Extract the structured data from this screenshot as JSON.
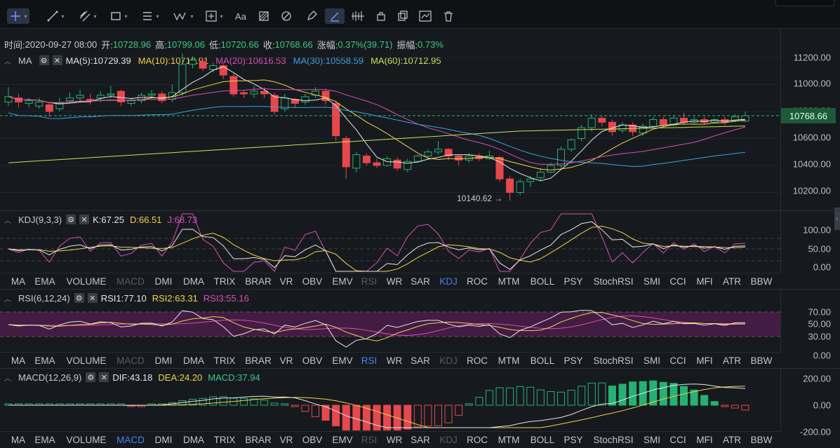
{
  "toolbar": {
    "tools": [
      "crosshair-icon",
      "trend-line-icon",
      "parallel-line-icon",
      "rectangle-icon",
      "fib-lines-icon",
      "wave-icon",
      "measure-icon",
      "text-icon",
      "pattern-icon",
      "shapes-icon",
      "pencil-icon",
      "price-range-icon",
      "lock-icon",
      "duplicate-icon",
      "settings-icon",
      "trash-icon"
    ],
    "text_tool_label": "Aa"
  },
  "info": {
    "time_label": "时间:",
    "time": "2020-09-27 08:00",
    "open_label": "开:",
    "open": "10728.96",
    "high_label": "高:",
    "high": "10799.06",
    "low_label": "低:",
    "low": "10720.66",
    "close_label": "收:",
    "close": "10768.66",
    "change_label": "涨幅:",
    "change": "0.37%(39.71)",
    "amp_label": "振幅:",
    "amp": "0.73%"
  },
  "ma": {
    "name": "MA",
    "ma5": "MA(5):10729.39",
    "ma10": "MA(10):10710.91",
    "ma20": "MA(20):10616.53",
    "ma30": "MA(30):10558.59",
    "ma60": "MA(60):10712.95",
    "colors": {
      "ma5": "#e8e8e8",
      "ma10": "#f2d24a",
      "ma20": "#d94fb3",
      "ma30": "#3f9fe0",
      "ma60": "#c9e25a"
    }
  },
  "price_axis": [
    "11200.00",
    "11000.00",
    "10800.00",
    "10600.00",
    "10400.00",
    "10200.00"
  ],
  "current_price": "10768.66",
  "min_marker": "10140.62 →",
  "kdj": {
    "name": "KDJ(9,3,3)",
    "k": "K:67.25",
    "d": "D:66.51",
    "j": "J:68.73",
    "axis": [
      "100.00",
      "50.00",
      "0.00"
    ]
  },
  "rsi": {
    "name": "RSI(6,12,24)",
    "r1": "RSI1:77.10",
    "r2": "RSI2:63.31",
    "r3": "RSI3:55.16",
    "axis": [
      "70.00",
      "50.00",
      "30.00",
      "0.00"
    ]
  },
  "macd": {
    "name": "MACD(12,26,9)",
    "dif": "DIF:43.18",
    "dea": "DEA:24.20",
    "macd": "MACD:37.94",
    "axis": [
      "200.00",
      "0.00",
      "-200.00"
    ]
  },
  "indicator_tabs": [
    "MA",
    "EMA",
    "VOLUME",
    "MACD",
    "DMI",
    "DMA",
    "TRIX",
    "BRAR",
    "VR",
    "OBV",
    "EMV",
    "RSI",
    "WR",
    "SAR",
    "KDJ",
    "ROC",
    "MTM",
    "BOLL",
    "PSY",
    "StochRSI",
    "SMI",
    "CCI",
    "MFI",
    "ATR",
    "BBW"
  ],
  "tabs_selected": [
    "KDJ",
    "RSI",
    "MACD"
  ],
  "chart_data": {
    "type": "candlestick",
    "candles": [
      [
        10870,
        10910,
        10840,
        10980
      ],
      [
        10900,
        10870,
        10830,
        10930
      ],
      [
        10860,
        10880,
        10830,
        10900
      ],
      [
        10840,
        10870,
        10820,
        10900
      ],
      [
        10850,
        10800,
        10760,
        10870
      ],
      [
        10820,
        10860,
        10800,
        10900
      ],
      [
        10880,
        10900,
        10860,
        10940
      ],
      [
        10900,
        10920,
        10880,
        10960
      ],
      [
        10890,
        10880,
        10850,
        10930
      ],
      [
        10900,
        10920,
        10870,
        10950
      ],
      [
        10920,
        10930,
        10900,
        10990
      ],
      [
        10950,
        10870,
        10840,
        10960
      ],
      [
        10860,
        10880,
        10840,
        10900
      ],
      [
        10880,
        10920,
        10860,
        10940
      ],
      [
        10920,
        10930,
        10900,
        10960
      ],
      [
        10930,
        10880,
        10860,
        10950
      ],
      [
        10890,
        10940,
        10870,
        11000
      ],
      [
        10940,
        11150,
        10920,
        11230
      ],
      [
        11150,
        11180,
        11120,
        11210
      ],
      [
        11170,
        11120,
        11100,
        11190
      ],
      [
        11110,
        11140,
        11090,
        11160
      ],
      [
        11140,
        11070,
        11040,
        11150
      ],
      [
        11060,
        10930,
        10910,
        11080
      ],
      [
        10940,
        10930,
        10900,
        10960
      ],
      [
        10930,
        10950,
        10900,
        10990
      ],
      [
        10950,
        10930,
        10900,
        10980
      ],
      [
        10920,
        10800,
        10780,
        10940
      ],
      [
        10820,
        10900,
        10800,
        10930
      ],
      [
        10890,
        10860,
        10830,
        10900
      ],
      [
        10870,
        10910,
        10850,
        10930
      ],
      [
        10920,
        10950,
        10900,
        10980
      ],
      [
        10950,
        10880,
        10850,
        10970
      ],
      [
        10860,
        10620,
        10580,
        10880
      ],
      [
        10600,
        10390,
        10300,
        10620
      ],
      [
        10380,
        10480,
        10350,
        10500
      ],
      [
        10470,
        10420,
        10400,
        10490
      ],
      [
        10420,
        10400,
        10380,
        10450
      ],
      [
        10400,
        10450,
        10390,
        10470
      ],
      [
        10440,
        10380,
        10360,
        10460
      ],
      [
        10370,
        10430,
        10350,
        10450
      ],
      [
        10430,
        10470,
        10420,
        10480
      ],
      [
        10470,
        10500,
        10450,
        10520
      ],
      [
        10500,
        10520,
        10480,
        10580
      ],
      [
        10520,
        10470,
        10440,
        10530
      ],
      [
        10470,
        10440,
        10400,
        10480
      ],
      [
        10440,
        10470,
        10420,
        10490
      ],
      [
        10470,
        10450,
        10430,
        10490
      ],
      [
        10450,
        10470,
        10440,
        10510
      ],
      [
        10460,
        10300,
        10280,
        10470
      ],
      [
        10300,
        10200,
        10140,
        10320
      ],
      [
        10200,
        10280,
        10180,
        10300
      ],
      [
        10280,
        10300,
        10240,
        10320
      ],
      [
        10310,
        10350,
        10290,
        10380
      ],
      [
        10350,
        10400,
        10340,
        10420
      ],
      [
        10400,
        10520,
        10380,
        10540
      ],
      [
        10520,
        10590,
        10500,
        10600
      ],
      [
        10600,
        10680,
        10580,
        10700
      ],
      [
        10680,
        10750,
        10650,
        10780
      ],
      [
        10750,
        10720,
        10690,
        10770
      ],
      [
        10720,
        10650,
        10620,
        10740
      ],
      [
        10660,
        10700,
        10640,
        10720
      ],
      [
        10700,
        10650,
        10620,
        10720
      ],
      [
        10640,
        10690,
        10620,
        10710
      ],
      [
        10690,
        10740,
        10680,
        10760
      ],
      [
        10740,
        10700,
        10680,
        10760
      ],
      [
        10700,
        10750,
        10690,
        10770
      ],
      [
        10750,
        10720,
        10700,
        10790
      ],
      [
        10720,
        10740,
        10700,
        10760
      ],
      [
        10740,
        10720,
        10700,
        10760
      ],
      [
        10720,
        10740,
        10710,
        10750
      ],
      [
        10740,
        10720,
        10700,
        10760
      ],
      [
        10730,
        10760,
        10720,
        10780
      ],
      [
        10729,
        10769,
        10721,
        10799
      ]
    ]
  }
}
